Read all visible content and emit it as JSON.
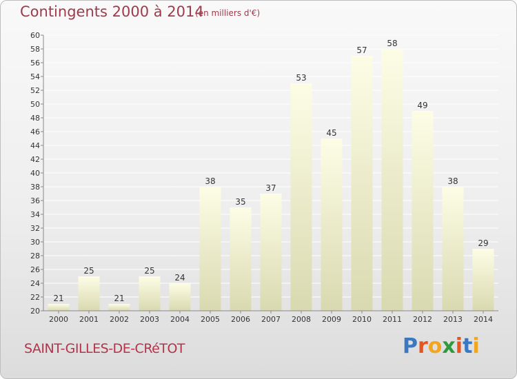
{
  "title": "Contingents 2000 à 2014",
  "subtitle": "(en milliers d'€)",
  "commune": "SAINT-GILLES-DE-CRéTOT",
  "brand": {
    "letters": [
      "P",
      "r",
      "o",
      "x",
      "i",
      "t",
      "i"
    ],
    "colors": [
      "#3a78c2",
      "#e8541e",
      "#f2a51f",
      "#2f9a3b",
      "#e8541e",
      "#3a78c2",
      "#f2a51f"
    ]
  },
  "chart_data": {
    "type": "bar",
    "categories": [
      "2000",
      "2001",
      "2002",
      "2003",
      "2004",
      "2005",
      "2006",
      "2007",
      "2008",
      "2009",
      "2010",
      "2011",
      "2012",
      "2013",
      "2014"
    ],
    "values": [
      21,
      25,
      21,
      25,
      24,
      38,
      35,
      37,
      53,
      45,
      57,
      58,
      49,
      38,
      29
    ],
    "title": "Contingents 2000 à 2014",
    "subtitle": "(en milliers d'€)",
    "xlabel": "",
    "ylabel": "",
    "ylim": [
      20,
      60
    ],
    "yticks": [
      20,
      22,
      24,
      26,
      28,
      30,
      32,
      34,
      36,
      38,
      40,
      42,
      44,
      46,
      48,
      50,
      52,
      54,
      56,
      58,
      60
    ],
    "grid": true,
    "colors": {
      "bar_top": "#fdfde6",
      "bar_bottom": "#d9d9b0",
      "grid": "#ffffff",
      "axis": "#888888",
      "text": "#333333"
    }
  }
}
